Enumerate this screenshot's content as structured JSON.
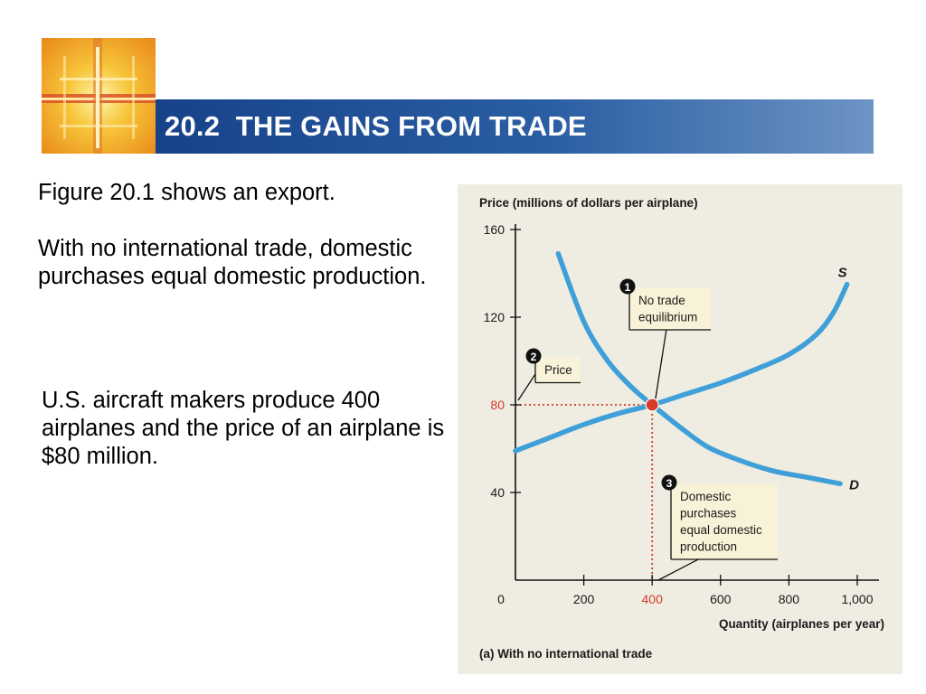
{
  "slide": {
    "title": "20.2  THE GAINS FROM TRADE",
    "paragraphs": [
      "Figure 20.1 shows an export.",
      "With no international trade, domestic purchases equal domestic production.",
      "U.S. aircraft makers produce 400 airplanes and the price of an airplane is $80 million."
    ]
  },
  "colors": {
    "title_bar": "#1f4e96",
    "curve": "#3f9fd8",
    "equilibrium": "#d63a2a",
    "panel": "#efece1",
    "callout": "#f8f2d8"
  },
  "chart_data": {
    "type": "line",
    "ylabel": "Price (millions of dollars per airplane)",
    "xlabel": "Quantity (airplanes per year)",
    "caption": "(a) With no international trade",
    "xlim": [
      0,
      1050
    ],
    "ylim": [
      0,
      165
    ],
    "x_ticks": [
      {
        "value": 0,
        "label": "0"
      },
      {
        "value": 200,
        "label": "200"
      },
      {
        "value": 400,
        "label": "400",
        "highlight": true
      },
      {
        "value": 600,
        "label": "600"
      },
      {
        "value": 800,
        "label": "800"
      },
      {
        "value": 1000,
        "label": "1,000"
      }
    ],
    "y_ticks": [
      {
        "value": 40,
        "label": "40"
      },
      {
        "value": 80,
        "label": "80",
        "highlight": true
      },
      {
        "value": 120,
        "label": "120"
      },
      {
        "value": 160,
        "label": "160"
      }
    ],
    "series": [
      {
        "name": "S",
        "points": [
          [
            0,
            59
          ],
          [
            100,
            65
          ],
          [
            200,
            71
          ],
          [
            300,
            76
          ],
          [
            400,
            80
          ],
          [
            500,
            85
          ],
          [
            600,
            90
          ],
          [
            700,
            96
          ],
          [
            800,
            103
          ],
          [
            880,
            112
          ],
          [
            930,
            122
          ],
          [
            970,
            135
          ]
        ]
      },
      {
        "name": "D",
        "points": [
          [
            125,
            149
          ],
          [
            200,
            118
          ],
          [
            270,
            100
          ],
          [
            340,
            88
          ],
          [
            400,
            80
          ],
          [
            480,
            70
          ],
          [
            560,
            61
          ],
          [
            650,
            55
          ],
          [
            750,
            50
          ],
          [
            850,
            47
          ],
          [
            950,
            44
          ]
        ]
      }
    ],
    "equilibrium": {
      "x": 400,
      "y": 80
    },
    "annotations": [
      {
        "number": "1",
        "lines": [
          "No trade",
          "equilibrium"
        ]
      },
      {
        "number": "2",
        "lines": [
          "Price"
        ]
      },
      {
        "number": "3",
        "lines": [
          "Domestic",
          "purchases",
          "equal domestic",
          "production"
        ]
      }
    ]
  }
}
